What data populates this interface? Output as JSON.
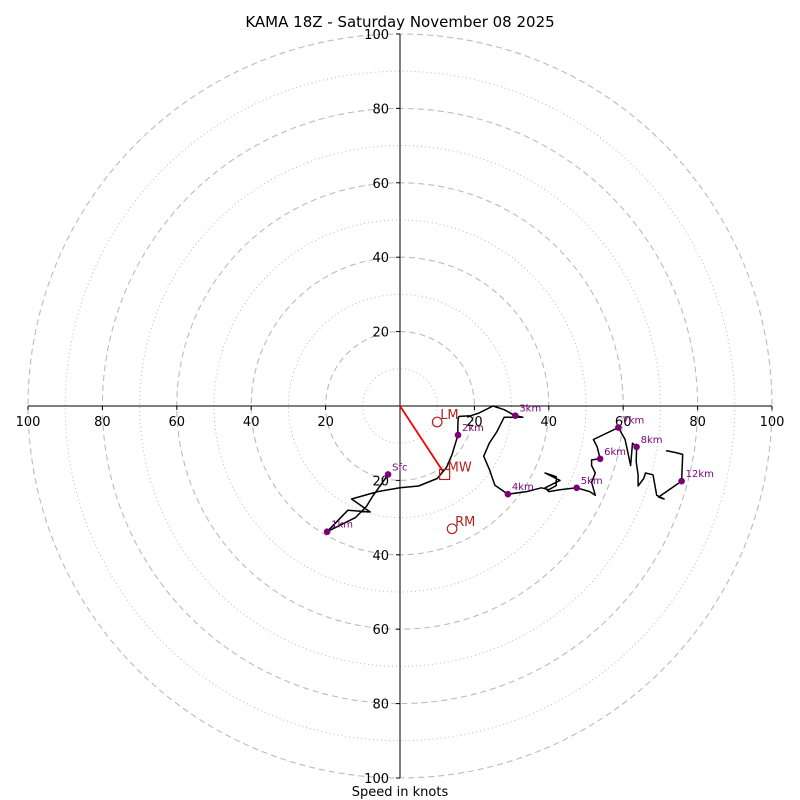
{
  "chart_data": {
    "type": "hodograph",
    "title": "KAMA 18Z - Saturday November 08 2025",
    "xlabel": "Speed in knots",
    "range": [
      -100,
      100
    ],
    "major_rings": [
      20,
      40,
      60,
      80,
      100
    ],
    "minor_rings": [
      10,
      30,
      50,
      70,
      90
    ],
    "x_ticks": [
      {
        "value": -100,
        "label": "100"
      },
      {
        "value": -80,
        "label": "80"
      },
      {
        "value": -60,
        "label": "60"
      },
      {
        "value": -40,
        "label": "40"
      },
      {
        "value": -20,
        "label": "20"
      },
      {
        "value": 20,
        "label": "20"
      },
      {
        "value": 40,
        "label": "40"
      },
      {
        "value": 60,
        "label": "60"
      },
      {
        "value": 80,
        "label": "80"
      },
      {
        "value": 100,
        "label": "100"
      }
    ],
    "y_ticks": [
      {
        "value": 100,
        "label": "100"
      },
      {
        "value": 80,
        "label": "80"
      },
      {
        "value": 60,
        "label": "60"
      },
      {
        "value": 40,
        "label": "40"
      },
      {
        "value": 20,
        "label": "20"
      },
      {
        "value": -20,
        "label": "20"
      },
      {
        "value": -40,
        "label": "40"
      },
      {
        "value": -60,
        "label": "60"
      },
      {
        "value": -80,
        "label": "80"
      },
      {
        "value": -100,
        "label": "100"
      }
    ],
    "trace": [
      [
        -3.2,
        -18.4
      ],
      [
        -5,
        -21
      ],
      [
        -7.5,
        -24.5
      ],
      [
        -9,
        -27
      ],
      [
        -12,
        -30
      ],
      [
        -19.6,
        -33.8
      ],
      [
        -14,
        -28
      ],
      [
        -8,
        -28.5
      ],
      [
        -13,
        -25
      ],
      [
        -6,
        -23
      ],
      [
        0,
        -22
      ],
      [
        5,
        -21.5
      ],
      [
        10,
        -19.5
      ],
      [
        12.5,
        -16.5
      ],
      [
        14,
        -13
      ],
      [
        15.5,
        -8
      ],
      [
        15.6,
        -4
      ],
      [
        15.7,
        -3
      ],
      [
        16,
        -2.8
      ],
      [
        19,
        -2.6
      ],
      [
        21,
        -2
      ],
      [
        25,
        0
      ],
      [
        28,
        -1
      ],
      [
        31,
        -2.6
      ],
      [
        33,
        -3
      ],
      [
        28,
        -3
      ],
      [
        26,
        -7
      ],
      [
        24,
        -10
      ],
      [
        22.5,
        -13.5
      ],
      [
        24,
        -17
      ],
      [
        25.5,
        -21.3
      ],
      [
        29,
        -23.7
      ],
      [
        34,
        -23
      ],
      [
        38,
        -22
      ],
      [
        40,
        -22.5
      ],
      [
        42,
        -21.4
      ],
      [
        42,
        -19
      ],
      [
        39,
        -18
      ],
      [
        43,
        -20
      ],
      [
        39,
        -22
      ],
      [
        40,
        -23
      ],
      [
        43,
        -22.5
      ],
      [
        47.5,
        -22
      ],
      [
        51,
        -23
      ],
      [
        52.5,
        -24
      ],
      [
        51.5,
        -20.5
      ],
      [
        52.5,
        -18
      ],
      [
        51.5,
        -16
      ],
      [
        51.5,
        -14.5
      ],
      [
        53.8,
        -14.2
      ],
      [
        53,
        -11
      ],
      [
        52,
        -9
      ],
      [
        58.7,
        -5.8
      ],
      [
        60.5,
        -9
      ],
      [
        62,
        -16
      ],
      [
        62.5,
        -10
      ],
      [
        63.6,
        -11
      ],
      [
        63.5,
        -15
      ],
      [
        64,
        -18.5
      ],
      [
        64,
        -21.5
      ],
      [
        65.5,
        -19.5
      ],
      [
        66,
        -18
      ],
      [
        68,
        -18.5
      ],
      [
        69,
        -24
      ],
      [
        71,
        -25
      ],
      [
        69.5,
        -24.5
      ],
      [
        75.7,
        -20.2
      ],
      [
        76,
        -13
      ],
      [
        74,
        -12.5
      ],
      [
        71.5,
        -12
      ]
    ],
    "height_markers": [
      {
        "label": "Sfc",
        "u": -3.2,
        "v": -18.4
      },
      {
        "label": "1km",
        "u": -19.6,
        "v": -33.8
      },
      {
        "label": "2km",
        "u": 15.6,
        "v": -7.8
      },
      {
        "label": "3km",
        "u": 31,
        "v": -2.6
      },
      {
        "label": "4km",
        "u": 29,
        "v": -23.7
      },
      {
        "label": "5km",
        "u": 47.5,
        "v": -22
      },
      {
        "label": "6km",
        "u": 53.8,
        "v": -14.2
      },
      {
        "label": "7km",
        "u": 58.7,
        "v": -5.8
      },
      {
        "label": "8km",
        "u": 63.6,
        "v": -11
      },
      {
        "label": "12km",
        "u": 75.7,
        "v": -20.2
      }
    ],
    "mean_wind_line": {
      "from": [
        0,
        0
      ],
      "to": [
        11.5,
        -17.5
      ],
      "color": "#ff0000"
    },
    "storm_motion": [
      {
        "label": "LM",
        "u": 10,
        "v": -4.3,
        "marker": "circle"
      },
      {
        "label": "MW",
        "u": 12,
        "v": -18.4,
        "marker": "square"
      },
      {
        "label": "RM",
        "u": 14,
        "v": -33,
        "marker": "circle"
      }
    ],
    "colors": {
      "trace": "#000000",
      "height_marker": "#7b007b",
      "storm_motion": "#b22222",
      "ring": "#bbbbbb",
      "axis": "#000000"
    }
  }
}
